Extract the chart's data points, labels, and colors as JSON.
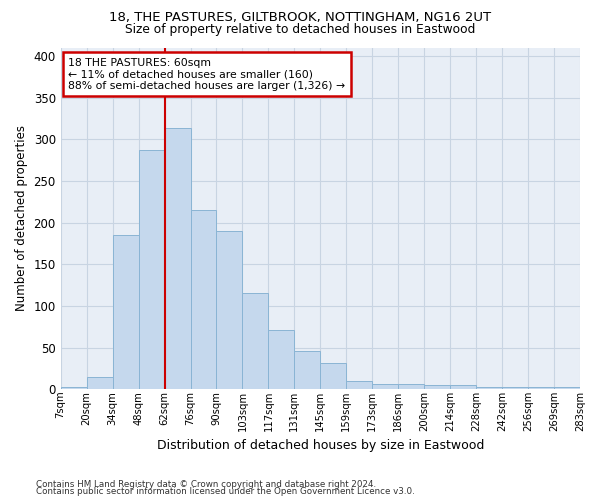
{
  "title1": "18, THE PASTURES, GILTBROOK, NOTTINGHAM, NG16 2UT",
  "title2": "Size of property relative to detached houses in Eastwood",
  "xlabel": "Distribution of detached houses by size in Eastwood",
  "ylabel": "Number of detached properties",
  "tick_labels": [
    "7sqm",
    "20sqm",
    "34sqm",
    "48sqm",
    "62sqm",
    "76sqm",
    "90sqm",
    "103sqm",
    "117sqm",
    "131sqm",
    "145sqm",
    "159sqm",
    "173sqm",
    "186sqm",
    "200sqm",
    "214sqm",
    "228sqm",
    "242sqm",
    "256sqm",
    "269sqm",
    "283sqm"
  ],
  "bar_values": [
    3,
    15,
    185,
    287,
    313,
    215,
    190,
    116,
    71,
    46,
    32,
    10,
    7,
    6,
    5,
    5,
    3,
    3,
    3,
    3
  ],
  "bar_face_color": "#c5d8ed",
  "bar_edge_color": "#8ab4d4",
  "vline_color": "#cc0000",
  "vline_x_index": 4,
  "annotation_line1": "18 THE PASTURES: 60sqm",
  "annotation_line2": "← 11% of detached houses are smaller (160)",
  "annotation_line3": "88% of semi-detached houses are larger (1,326) →",
  "annot_box_facecolor": "#ffffff",
  "annot_box_edgecolor": "#cc0000",
  "bg_color": "#e8eef6",
  "grid_color": "#c8d4e2",
  "footer1": "Contains HM Land Registry data © Crown copyright and database right 2024.",
  "footer2": "Contains public sector information licensed under the Open Government Licence v3.0.",
  "yticks": [
    0,
    50,
    100,
    150,
    200,
    250,
    300,
    350,
    400
  ],
  "ylim_max": 410
}
